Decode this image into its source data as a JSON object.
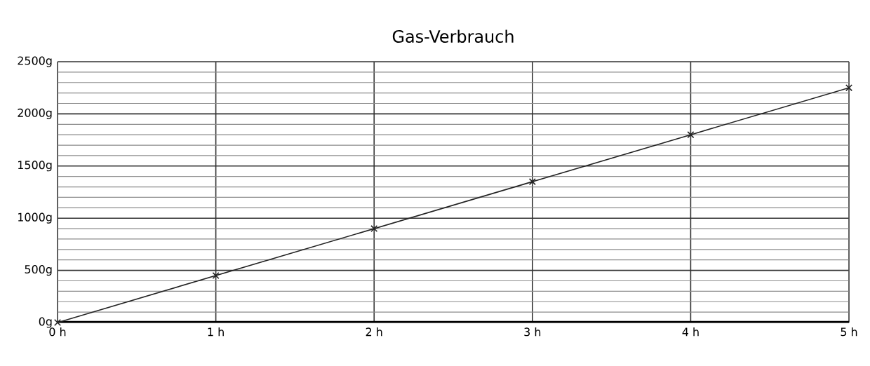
{
  "chart_data": {
    "type": "line",
    "title": "Gas-Verbrauch",
    "x": [
      0,
      1,
      2,
      3,
      4,
      5
    ],
    "series": [
      {
        "color": "#222222",
        "values": [
          0,
          450,
          900,
          1350,
          1800,
          2250
        ]
      }
    ],
    "xlim": [
      0,
      5
    ],
    "xticks": [
      {
        "value": 0,
        "label": "0 h"
      },
      {
        "value": 1,
        "label": "1 h"
      },
      {
        "value": 2,
        "label": "2 h"
      },
      {
        "value": 3,
        "label": "3 h"
      },
      {
        "value": 4,
        "label": "4 h"
      },
      {
        "value": 5,
        "label": "5 h"
      }
    ],
    "ylim": [
      0,
      2500
    ],
    "yticks": [
      {
        "value": 0,
        "label": "0g"
      },
      {
        "value": 500,
        "label": "500g"
      },
      {
        "value": 1000,
        "label": "1000g"
      },
      {
        "value": 1500,
        "label": "1500g"
      },
      {
        "value": 2000,
        "label": "2000g"
      },
      {
        "value": 2500,
        "label": "2500g"
      }
    ],
    "grid": true,
    "marker": "cross",
    "line_style": "solid"
  }
}
